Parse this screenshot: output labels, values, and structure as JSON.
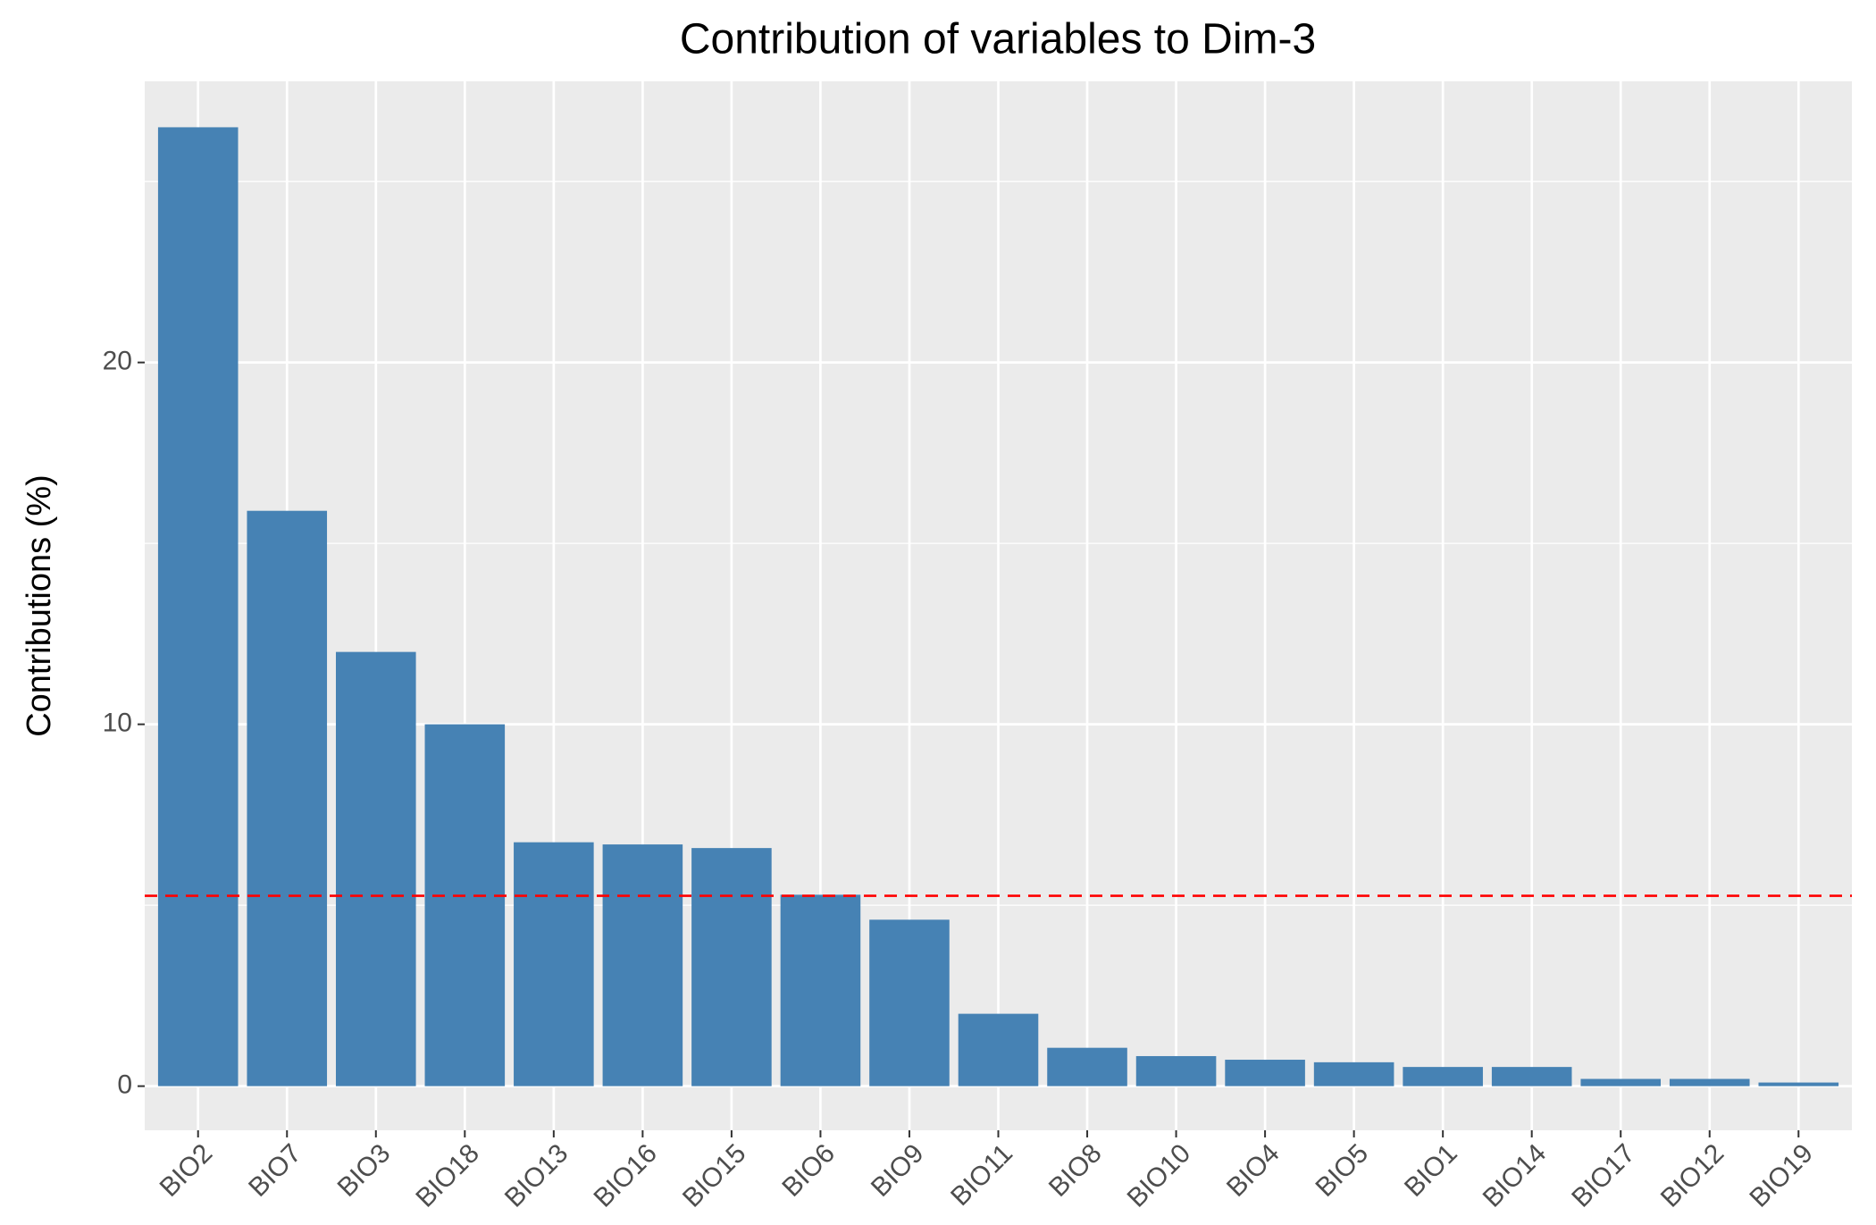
{
  "chart_data": {
    "type": "bar",
    "title": "Contribution of variables to Dim-3",
    "y_label": "Contributions (%)",
    "categories": [
      "BIO2",
      "BIO7",
      "BIO3",
      "BIO18",
      "BIO13",
      "BIO16",
      "BIO15",
      "BIO6",
      "BIO9",
      "BIO11",
      "BIO8",
      "BIO10",
      "BIO4",
      "BIO5",
      "BIO1",
      "BIO14",
      "BIO17",
      "BIO12",
      "BIO19"
    ],
    "values": [
      26.5,
      15.9,
      12.0,
      10.0,
      6.74,
      6.68,
      6.58,
      5.29,
      4.6,
      2.0,
      1.06,
      0.83,
      0.73,
      0.66,
      0.53,
      0.53,
      0.2,
      0.2,
      0.1
    ],
    "color": "#4682b4",
    "reference_line": 5.26,
    "reference_color": "#ff0000",
    "ylim": [
      -1.22,
      27.77
    ],
    "yticks": [
      0,
      10,
      20
    ],
    "grid": true
  }
}
